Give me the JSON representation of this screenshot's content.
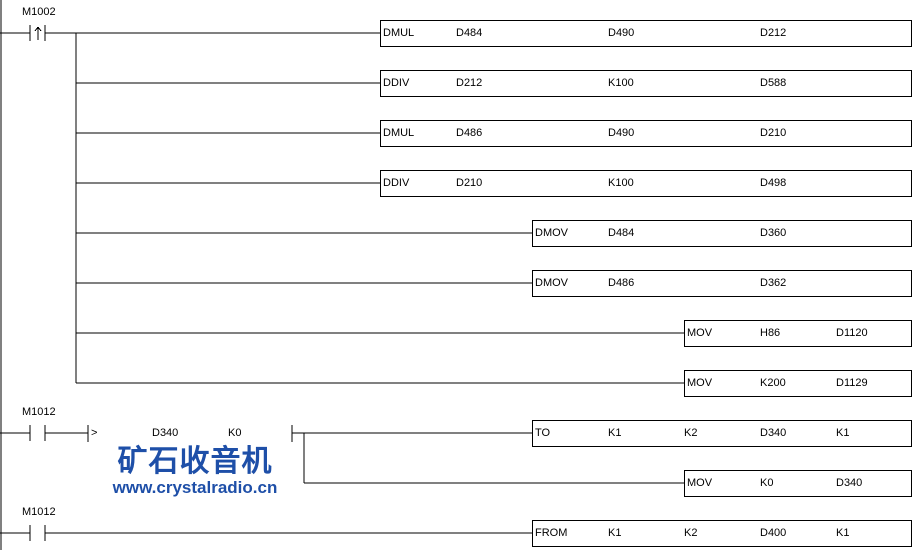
{
  "rungs": [
    {
      "contact": {
        "label": "M1002",
        "type": "rising-edge"
      },
      "outputs": [
        {
          "instr": "DMUL",
          "operands": [
            "D484",
            "D490",
            "D212"
          ]
        },
        {
          "instr": "DDIV",
          "operands": [
            "D212",
            "K100",
            "D588"
          ]
        },
        {
          "instr": "DMUL",
          "operands": [
            "D486",
            "D490",
            "D210"
          ]
        },
        {
          "instr": "DDIV",
          "operands": [
            "D210",
            "K100",
            "D498"
          ]
        },
        {
          "instr": "DMOV",
          "operands": [
            "D484",
            "D360"
          ]
        },
        {
          "instr": "DMOV",
          "operands": [
            "D486",
            "D362"
          ]
        },
        {
          "instr": "MOV",
          "operands": [
            "H86",
            "D1120"
          ]
        },
        {
          "instr": "MOV",
          "operands": [
            "K200",
            "D1129"
          ]
        }
      ]
    },
    {
      "contact": {
        "label": "M1012",
        "type": "normally-open"
      },
      "compare": {
        "op": ">",
        "a": "D340",
        "b": "K0"
      },
      "outputs": [
        {
          "instr": "TO",
          "operands": [
            "K1",
            "K2",
            "D340",
            "K1"
          ]
        },
        {
          "instr": "MOV",
          "operands": [
            "K0",
            "D340"
          ]
        }
      ]
    },
    {
      "contact": {
        "label": "M1012",
        "type": "normally-open"
      },
      "outputs": [
        {
          "instr": "FROM",
          "operands": [
            "K1",
            "K2",
            "D400",
            "K1"
          ]
        }
      ]
    }
  ],
  "watermark": {
    "title": "矿石收音机",
    "url": "www.crystalradio.cn",
    "color": "#1e4fa8"
  }
}
